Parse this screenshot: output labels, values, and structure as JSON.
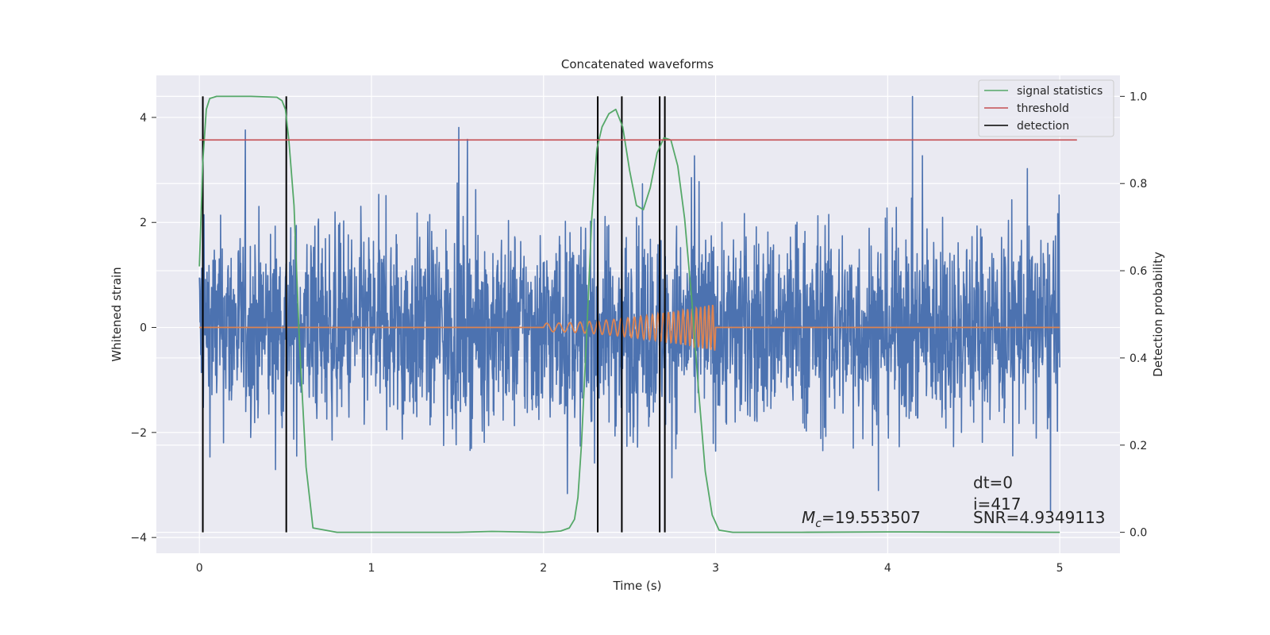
{
  "chart_data": {
    "type": "line",
    "title": "Concatenated waveforms",
    "xlabel": "Time (s)",
    "ylabel": "Whitened strain",
    "y2label": "Detection probability",
    "xlim": [
      -0.25,
      5.35
    ],
    "ylim": [
      -4.3,
      4.8
    ],
    "y2lim": [
      -0.048,
      1.048
    ],
    "xticks": [
      "0",
      "1",
      "2",
      "3",
      "4",
      "5"
    ],
    "yticks": [
      "4",
      "2",
      "0",
      "−2",
      "−4"
    ],
    "y2ticks": [
      "1.0",
      "0.8",
      "0.6",
      "0.4",
      "0.2",
      "0.0"
    ],
    "grid": true,
    "legend_position": "top-right",
    "colors": {
      "noise": "#4c72b0",
      "injection": "#dd8452",
      "signal_statistics": "#55a868",
      "threshold": "#c44e52",
      "detection": "#000000",
      "axes_bg": "#eaeaf2",
      "grid": "#ffffff"
    },
    "series": [
      {
        "name": "signal statistics",
        "axis": "right",
        "x": [
          0.0,
          0.02,
          0.04,
          0.06,
          0.1,
          0.2,
          0.3,
          0.45,
          0.48,
          0.5,
          0.52,
          0.55,
          0.58,
          0.62,
          0.66,
          0.8,
          1.0,
          1.5,
          1.7,
          2.0,
          2.1,
          2.15,
          2.18,
          2.2,
          2.22,
          2.25,
          2.28,
          2.31,
          2.34,
          2.38,
          2.42,
          2.46,
          2.5,
          2.54,
          2.58,
          2.62,
          2.66,
          2.7,
          2.74,
          2.78,
          2.82,
          2.86,
          2.9,
          2.94,
          2.98,
          3.02,
          3.1,
          3.5,
          4.0,
          5.0
        ],
        "y": [
          0.61,
          0.85,
          0.97,
          0.995,
          1.0,
          1.0,
          1.0,
          0.998,
          0.99,
          0.97,
          0.9,
          0.75,
          0.45,
          0.15,
          0.01,
          0.0,
          0.0,
          0.0,
          0.002,
          0.0,
          0.003,
          0.01,
          0.03,
          0.08,
          0.2,
          0.45,
          0.72,
          0.88,
          0.93,
          0.96,
          0.97,
          0.93,
          0.83,
          0.75,
          0.74,
          0.79,
          0.87,
          0.905,
          0.9,
          0.84,
          0.72,
          0.54,
          0.33,
          0.14,
          0.04,
          0.005,
          0.0,
          0.0,
          0.001,
          0.0
        ]
      },
      {
        "name": "threshold",
        "axis": "right",
        "x": [
          0.0,
          5.1
        ],
        "y": [
          0.9,
          0.9
        ]
      },
      {
        "name": "detection",
        "axis": "right",
        "x": [
          0.02,
          0.505,
          2.315,
          2.455,
          2.675,
          2.705
        ]
      }
    ],
    "noise": {
      "name": "",
      "x_range": [
        0.0,
        5.0
      ],
      "y_range": [
        -3.9,
        4.4
      ]
    },
    "injection": {
      "name": "",
      "x_range": [
        2.0,
        3.0
      ],
      "amplitude_max": 0.45
    },
    "annotations": {
      "mc": "=19.553507",
      "dt": "dt=0",
      "i": "i=417",
      "snr": "SNR=4.9349113"
    }
  }
}
